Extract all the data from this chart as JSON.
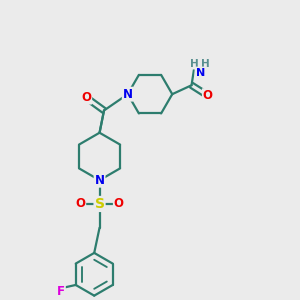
{
  "background_color": "#ebebeb",
  "bond_color": "#2d7d6e",
  "bond_width": 1.6,
  "atom_colors": {
    "N": "#0000ee",
    "O": "#ee0000",
    "S": "#cccc00",
    "F": "#dd00dd",
    "H": "#5a9090",
    "C": "#2d7d6e"
  },
  "font_size_atom": 8.5,
  "fig_size": [
    3.0,
    3.0
  ],
  "dpi": 100
}
